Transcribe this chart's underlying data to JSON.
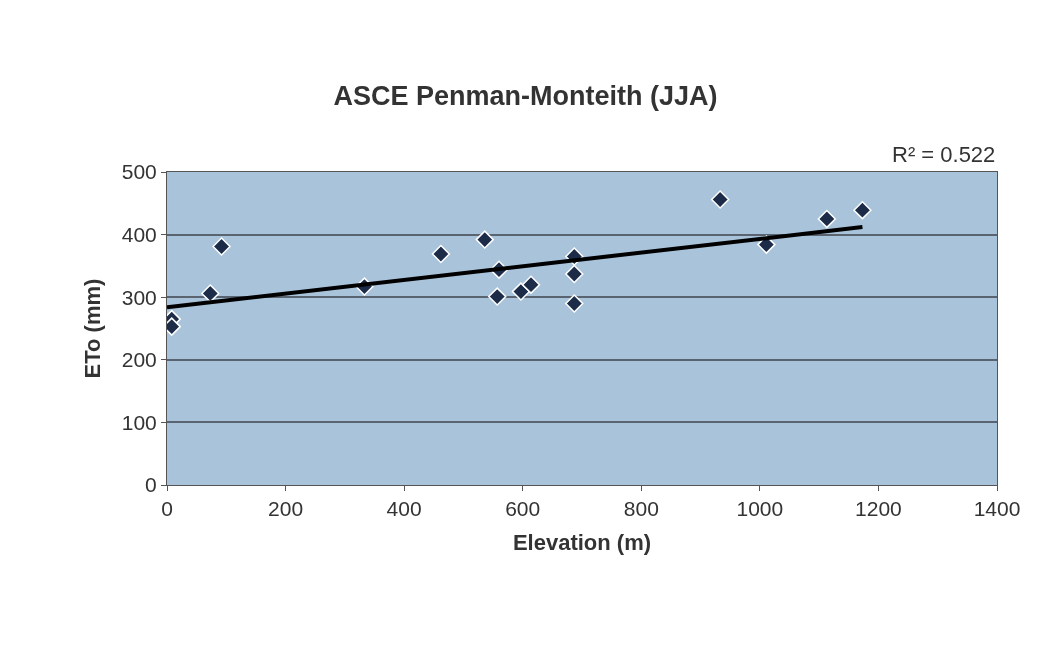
{
  "chart_data": {
    "type": "scatter",
    "title": "ASCE Penman-Monteith (JJA)",
    "xlabel": "Elevation (m)",
    "ylabel": "ETo (mm)",
    "annotations": [
      "R² = 0.522"
    ],
    "series": [
      {
        "color": "#1b2b48",
        "marker": "diamond",
        "x": [
          8,
          8,
          73,
          92,
          333,
          462,
          536,
          557,
          560,
          597,
          614,
          687,
          687,
          687,
          933,
          1011,
          1113,
          1173
        ],
        "values": [
          265,
          253,
          306,
          381,
          317,
          369,
          392,
          301,
          344,
          309,
          320,
          365,
          337,
          290,
          456,
          384,
          425,
          439
        ]
      },
      {
        "type": "line",
        "color": "#000000",
        "marker": "none",
        "line_style": "solid",
        "x": [
          0,
          1173
        ],
        "values": [
          284,
          412
        ]
      }
    ],
    "xlim": [
      0,
      1400
    ],
    "xticks": [
      0,
      200,
      400,
      600,
      800,
      1000,
      1200,
      1400
    ],
    "ylim": [
      0,
      500
    ],
    "yticks": [
      0,
      100,
      200,
      300,
      400,
      500
    ],
    "grid": "y",
    "legend": false
  }
}
